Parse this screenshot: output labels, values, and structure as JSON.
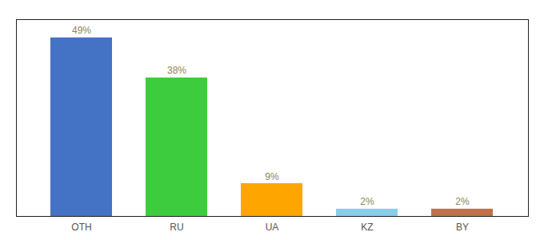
{
  "chart_data": {
    "type": "bar",
    "categories": [
      "OTH",
      "RU",
      "UA",
      "KZ",
      "BY"
    ],
    "values": [
      49,
      38,
      9,
      2,
      2
    ],
    "value_labels": [
      "49%",
      "38%",
      "9%",
      "2%",
      "2%"
    ],
    "colors": [
      "#4472c4",
      "#3dcc3d",
      "#ffa500",
      "#87ceeb",
      "#c0714a"
    ],
    "ylim": [
      0,
      54
    ],
    "data_labels": true,
    "grid": false,
    "tick_labels": "x"
  }
}
